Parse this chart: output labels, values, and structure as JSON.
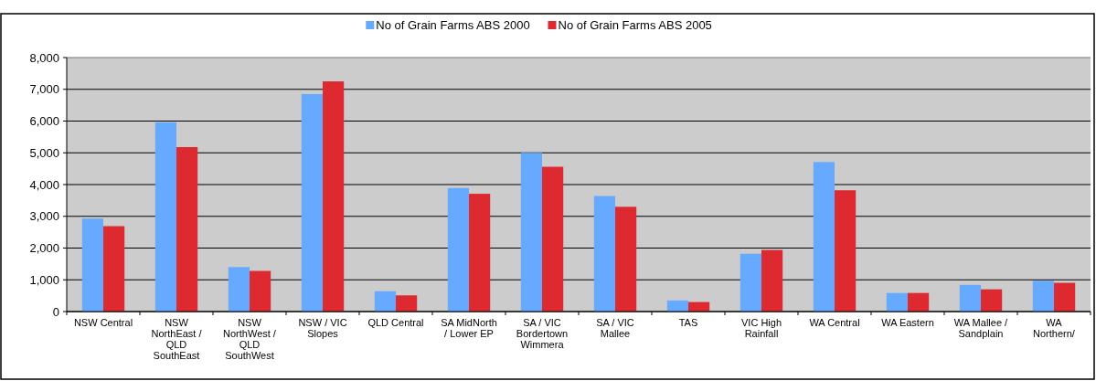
{
  "chart_data": {
    "type": "bar",
    "categories": [
      "NSW Central",
      "NSW NorthEast / QLD SouthEast",
      "NSW NorthWest / QLD SouthWest",
      "NSW / VIC Slopes",
      "QLD Central",
      "SA MidNorth / Lower EP",
      "SA / VIC Bordertown Wimmera",
      "SA / VIC Mallee",
      "TAS",
      "VIC High Rainfall",
      "WA Central",
      "WA Eastern",
      "WA Mallee / Sandplain",
      "WA Northern/"
    ],
    "series": [
      {
        "name": "No of Grain Farms ABS 2000",
        "color": "#66aaff",
        "values": [
          2930,
          5960,
          1400,
          6850,
          640,
          3890,
          5000,
          3640,
          350,
          1820,
          4710,
          585,
          840,
          970
        ]
      },
      {
        "name": "No of Grain Farms ABS 2005",
        "color": "#dc2a30",
        "values": [
          2690,
          5180,
          1280,
          7250,
          510,
          3710,
          4560,
          3300,
          300,
          1940,
          3820,
          585,
          700,
          905
        ]
      }
    ],
    "ylim": [
      0,
      8000
    ],
    "yticks": [
      {
        "value": 0,
        "label": "0"
      },
      {
        "value": 1000,
        "label": "1,000"
      },
      {
        "value": 2000,
        "label": "2,000"
      },
      {
        "value": 3000,
        "label": "3,000"
      },
      {
        "value": 4000,
        "label": "4,000"
      },
      {
        "value": 5000,
        "label": "5,000"
      },
      {
        "value": 6000,
        "label": "6,000"
      },
      {
        "value": 7000,
        "label": "7,000"
      },
      {
        "value": 8000,
        "label": "8,000"
      }
    ],
    "grid": "y",
    "legend": "top"
  }
}
